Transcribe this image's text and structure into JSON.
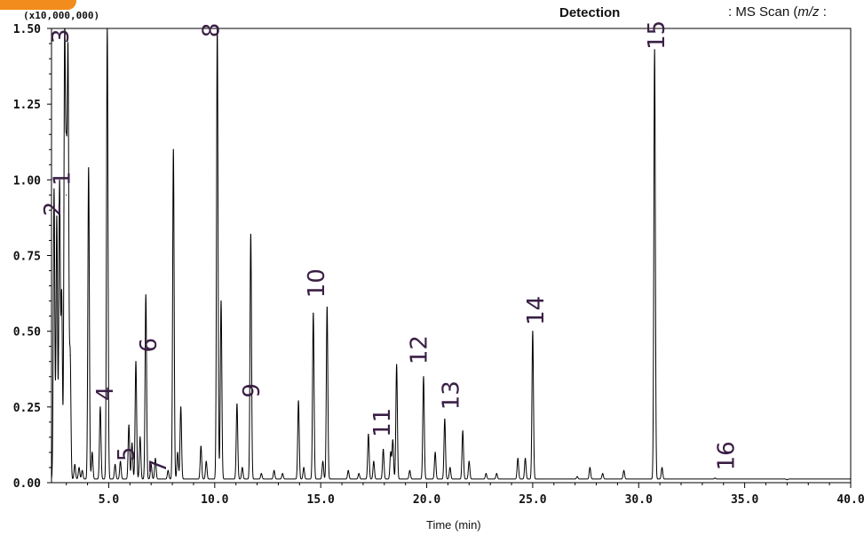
{
  "header": {
    "detection_label": "Detection",
    "method_prefix": ": MS Scan (",
    "method_italic": "m/z",
    "method_suffix": " :"
  },
  "chart_data": {
    "type": "line",
    "xlabel": "Time (min)",
    "ylabel": "",
    "y_scale_label": "(x10,000,000)",
    "xlim": [
      2.3,
      40.0
    ],
    "ylim": [
      0.0,
      1.5
    ],
    "x_ticks": [
      5.0,
      10.0,
      15.0,
      20.0,
      25.0,
      30.0,
      35.0,
      40.0
    ],
    "x_tick_labels": [
      "5.0",
      "10.0",
      "15.0",
      "20.0",
      "25.0",
      "30.0",
      "35.0",
      "40.0"
    ],
    "y_ticks": [
      0.0,
      0.25,
      0.5,
      0.75,
      1.0,
      1.25,
      1.5
    ],
    "y_tick_labels": [
      "0.00",
      "0.25",
      "0.50",
      "0.75",
      "1.00",
      "1.25",
      "1.50"
    ],
    "line_color": "#000000",
    "label_color": "#3a1f45",
    "baseline": 0.012,
    "peaks": [
      {
        "x": 2.42,
        "y": 0.97
      },
      {
        "x": 2.55,
        "y": 0.88
      },
      {
        "x": 2.68,
        "y": 0.99
      },
      {
        "x": 2.78,
        "y": 0.62
      },
      {
        "x": 2.92,
        "y": 1.44
      },
      {
        "x": 3.0,
        "y": 0.95
      },
      {
        "x": 3.08,
        "y": 1.37
      },
      {
        "x": 3.18,
        "y": 0.42
      },
      {
        "x": 3.4,
        "y": 0.06
      },
      {
        "x": 3.6,
        "y": 0.05
      },
      {
        "x": 3.75,
        "y": 0.04
      },
      {
        "x": 4.05,
        "y": 1.04
      },
      {
        "x": 4.22,
        "y": 0.1
      },
      {
        "x": 4.6,
        "y": 0.25
      },
      {
        "x": 4.93,
        "y": 1.5
      },
      {
        "x": 5.3,
        "y": 0.06
      },
      {
        "x": 5.55,
        "y": 0.07
      },
      {
        "x": 5.95,
        "y": 0.19
      },
      {
        "x": 6.1,
        "y": 0.13
      },
      {
        "x": 6.28,
        "y": 0.4
      },
      {
        "x": 6.48,
        "y": 0.15
      },
      {
        "x": 6.75,
        "y": 0.62
      },
      {
        "x": 7.0,
        "y": 0.06
      },
      {
        "x": 7.2,
        "y": 0.08
      },
      {
        "x": 7.8,
        "y": 0.04
      },
      {
        "x": 8.05,
        "y": 1.1
      },
      {
        "x": 8.25,
        "y": 0.1
      },
      {
        "x": 8.4,
        "y": 0.25
      },
      {
        "x": 9.35,
        "y": 0.12
      },
      {
        "x": 9.6,
        "y": 0.07
      },
      {
        "x": 10.12,
        "y": 1.5
      },
      {
        "x": 10.3,
        "y": 0.6
      },
      {
        "x": 11.05,
        "y": 0.26
      },
      {
        "x": 11.3,
        "y": 0.05
      },
      {
        "x": 11.7,
        "y": 0.82
      },
      {
        "x": 12.2,
        "y": 0.03
      },
      {
        "x": 12.8,
        "y": 0.04
      },
      {
        "x": 13.2,
        "y": 0.03
      },
      {
        "x": 13.95,
        "y": 0.27
      },
      {
        "x": 14.2,
        "y": 0.05
      },
      {
        "x": 14.65,
        "y": 0.56
      },
      {
        "x": 15.1,
        "y": 0.07
      },
      {
        "x": 15.3,
        "y": 0.58
      },
      {
        "x": 16.3,
        "y": 0.04
      },
      {
        "x": 16.8,
        "y": 0.03
      },
      {
        "x": 17.25,
        "y": 0.16
      },
      {
        "x": 17.5,
        "y": 0.07
      },
      {
        "x": 17.95,
        "y": 0.11
      },
      {
        "x": 18.3,
        "y": 0.1
      },
      {
        "x": 18.4,
        "y": 0.14
      },
      {
        "x": 18.58,
        "y": 0.39
      },
      {
        "x": 19.2,
        "y": 0.04
      },
      {
        "x": 19.85,
        "y": 0.35
      },
      {
        "x": 20.4,
        "y": 0.1
      },
      {
        "x": 20.85,
        "y": 0.21
      },
      {
        "x": 21.1,
        "y": 0.05
      },
      {
        "x": 21.7,
        "y": 0.17
      },
      {
        "x": 22.0,
        "y": 0.07
      },
      {
        "x": 22.8,
        "y": 0.03
      },
      {
        "x": 23.3,
        "y": 0.03
      },
      {
        "x": 24.3,
        "y": 0.08
      },
      {
        "x": 24.65,
        "y": 0.08
      },
      {
        "x": 25.0,
        "y": 0.5
      },
      {
        "x": 27.1,
        "y": 0.02
      },
      {
        "x": 27.7,
        "y": 0.05
      },
      {
        "x": 28.3,
        "y": 0.03
      },
      {
        "x": 29.3,
        "y": 0.04
      },
      {
        "x": 30.75,
        "y": 1.43
      },
      {
        "x": 31.1,
        "y": 0.05
      },
      {
        "x": 33.6,
        "y": 0.015
      },
      {
        "x": 37.0,
        "y": 0.01
      }
    ],
    "annotations": [
      {
        "text": "1",
        "x": 3.15,
        "y": 0.98
      },
      {
        "text": "2",
        "x": 2.72,
        "y": 0.88
      },
      {
        "text": "3",
        "x": 3.1,
        "y": 1.45
      },
      {
        "text": "4",
        "x": 5.2,
        "y": 0.27
      },
      {
        "text": "5",
        "x": 6.2,
        "y": 0.07
      },
      {
        "text": "6",
        "x": 7.25,
        "y": 0.43
      },
      {
        "text": "7",
        "x": 7.7,
        "y": 0.03
      },
      {
        "text": "8",
        "x": 10.2,
        "y": 1.47
      },
      {
        "text": "9",
        "x": 12.1,
        "y": 0.28
      },
      {
        "text": "10",
        "x": 15.15,
        "y": 0.61
      },
      {
        "text": "11",
        "x": 18.25,
        "y": 0.15
      },
      {
        "text": "12",
        "x": 20.0,
        "y": 0.39
      },
      {
        "text": "13",
        "x": 21.5,
        "y": 0.24
      },
      {
        "text": "14",
        "x": 25.5,
        "y": 0.52
      },
      {
        "text": "15",
        "x": 31.2,
        "y": 1.43
      },
      {
        "text": "16",
        "x": 34.5,
        "y": 0.04
      }
    ]
  }
}
